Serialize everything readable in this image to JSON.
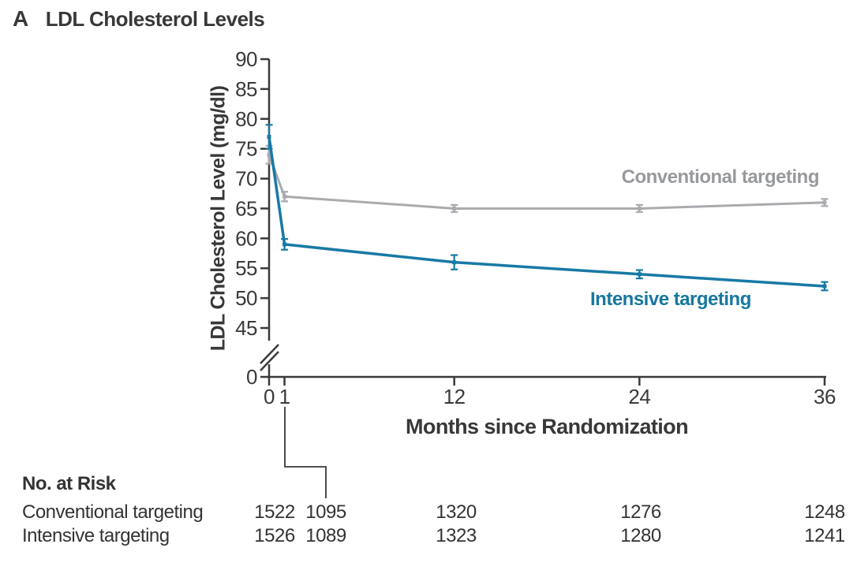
{
  "panel": {
    "label": "A",
    "title": "LDL Cholesterol Levels"
  },
  "chart_data": {
    "type": "line",
    "x": [
      0,
      1,
      12,
      24,
      36
    ],
    "xticks": [
      0,
      1,
      12,
      24,
      36
    ],
    "yticks": [
      0,
      45,
      50,
      55,
      60,
      65,
      70,
      75,
      80,
      85,
      90
    ],
    "xlabel": "Months since Randomization",
    "ylabel": "LDL Cholesterol Level (mg/dl)",
    "xlim": [
      0,
      36
    ],
    "ylim": [
      45,
      90
    ],
    "y_axis_break_between": [
      0,
      45
    ],
    "grid": false,
    "legend_position": "inline-labels",
    "series": [
      {
        "name": "Conventional targeting",
        "color": "#A9ABAE",
        "label_color": "#97999C",
        "values": [
          74,
          67,
          65,
          65,
          66
        ],
        "errors": [
          1.5,
          0.8,
          0.6,
          0.6,
          0.6
        ]
      },
      {
        "name": "Intensive targeting",
        "color": "#1879A5",
        "label_color": "#17789F",
        "values": [
          77,
          59,
          56,
          54,
          52
        ],
        "errors": [
          2.0,
          0.9,
          1.2,
          0.7,
          0.7
        ]
      }
    ],
    "axis_color": "#3a3a3a"
  },
  "risk_table": {
    "title": "No. at Risk",
    "rows": [
      {
        "label": "Conventional targeting",
        "values": [
          "1522",
          "1095",
          "1320",
          "1276",
          "1248"
        ]
      },
      {
        "label": "Intensive targeting",
        "values": [
          "1526",
          "1089",
          "1323",
          "1280",
          "1241"
        ]
      }
    ]
  }
}
